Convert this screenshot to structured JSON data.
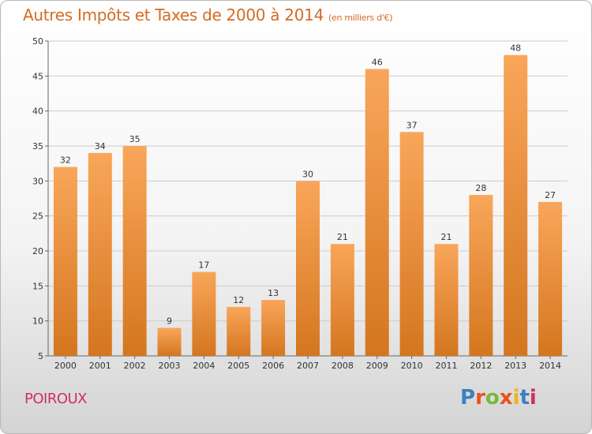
{
  "header": {
    "title": "Autres Impôts et Taxes de 2000 à 2014",
    "unit": "(en milliers d'€)"
  },
  "footer": {
    "commune": "POIROUX",
    "logo_text": "Proxiti",
    "logo_colors": [
      "#3c7fc1",
      "#e8521f",
      "#7cb83a",
      "#e8521f",
      "#f2b21a",
      "#3c7fc1",
      "#d0305c"
    ]
  },
  "colors": {
    "bar_light": "#f9a65a",
    "bar_dark": "#d4761f",
    "grid": "#cccccc",
    "title": "#d36c25"
  },
  "chart_data": {
    "type": "bar",
    "title": "Autres Impôts et Taxes de 2000 à 2014",
    "xlabel": "",
    "ylabel": "",
    "categories": [
      "2000",
      "2001",
      "2002",
      "2003",
      "2004",
      "2005",
      "2006",
      "2007",
      "2008",
      "2009",
      "2010",
      "2011",
      "2012",
      "2013",
      "2014"
    ],
    "values": [
      32,
      34,
      35,
      9,
      17,
      12,
      13,
      30,
      21,
      46,
      37,
      21,
      28,
      48,
      27
    ],
    "ylim": [
      5,
      50
    ],
    "yticks": [
      5,
      10,
      15,
      20,
      25,
      30,
      35,
      40,
      45,
      50
    ],
    "grid": true,
    "legend": "none"
  }
}
